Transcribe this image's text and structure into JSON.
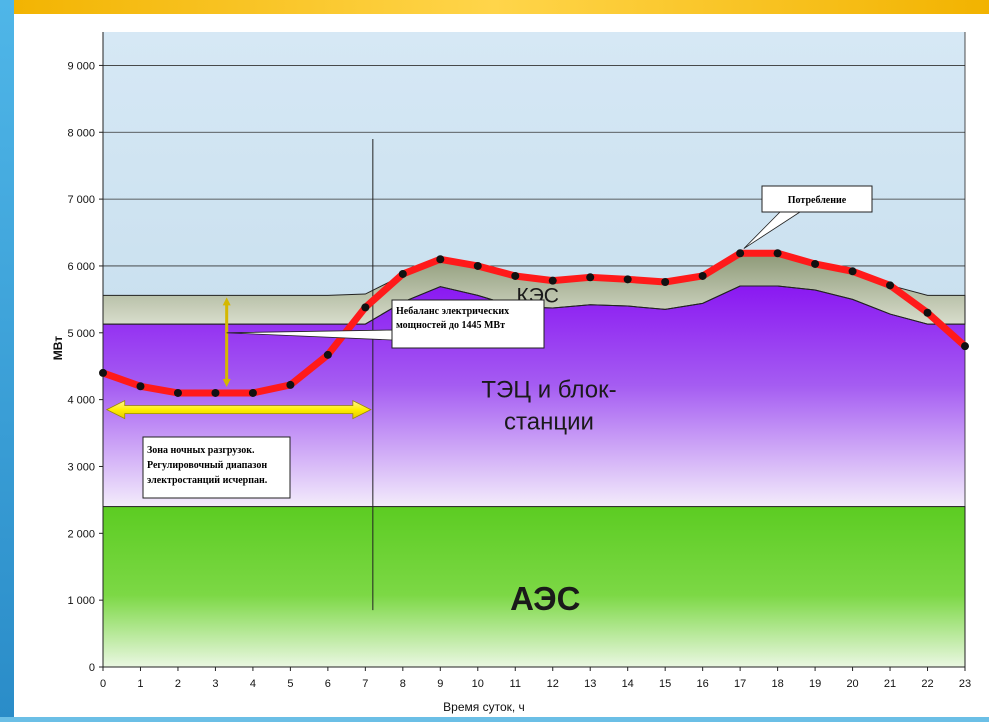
{
  "chart_data": {
    "type": "area",
    "xlabel": "Время суток, ч",
    "ylabel": "МВт",
    "ylim": [
      0,
      9500
    ],
    "xlim": [
      0,
      23
    ],
    "yticks": [
      0,
      1000,
      2000,
      3000,
      4000,
      5000,
      6000,
      7000,
      8000,
      9000
    ],
    "ytick_labels": [
      "0",
      "1 000",
      "2 000",
      "3 000",
      "4 000",
      "5 000",
      "6 000",
      "7 000",
      "8 000",
      "9 000"
    ],
    "x": [
      0,
      1,
      2,
      3,
      4,
      5,
      6,
      7,
      8,
      9,
      10,
      11,
      12,
      13,
      14,
      15,
      16,
      17,
      18,
      19,
      20,
      21,
      22,
      23
    ],
    "series": [
      {
        "name": "АЭС",
        "values": [
          2400,
          2400,
          2400,
          2400,
          2400,
          2400,
          2400,
          2400,
          2400,
          2400,
          2400,
          2400,
          2400,
          2400,
          2400,
          2400,
          2400,
          2400,
          2400,
          2400,
          2400,
          2400,
          2400,
          2400
        ]
      },
      {
        "name": "ТЭЦ и блок-станции",
        "values": [
          5130,
          5130,
          5130,
          5130,
          5130,
          5130,
          5130,
          5130,
          5460,
          5690,
          5560,
          5390,
          5370,
          5420,
          5400,
          5350,
          5440,
          5700,
          5700,
          5640,
          5500,
          5280,
          5130,
          5130
        ]
      },
      {
        "name": "КЭС",
        "values": [
          5560,
          5560,
          5560,
          5560,
          5560,
          5560,
          5560,
          5580,
          5860,
          6080,
          5990,
          5840,
          5780,
          5830,
          5800,
          5750,
          5840,
          6180,
          6180,
          6050,
          5910,
          5710,
          5560,
          5560
        ]
      },
      {
        "name": "Потребление",
        "values": [
          4400,
          4200,
          4100,
          4100,
          4100,
          4220,
          4670,
          5380,
          5880,
          6100,
          6000,
          5850,
          5780,
          5830,
          5800,
          5760,
          5850,
          6190,
          6190,
          6030,
          5920,
          5710,
          5300,
          4800
        ]
      }
    ],
    "night_zone_end_x": 7.2,
    "imbalance_value_x": 3.3,
    "grid": true,
    "colors": {
      "consumption": "#ff1a1a",
      "markers": "#111111",
      "aes": "#46c21c",
      "tec": "#8a1ef0",
      "kes": "#9eaa88",
      "sky": "#cfe3f2"
    },
    "annotations": {
      "consumption_callout": "Потребление",
      "imbalance_line1": "Небаланс электрических",
      "imbalance_line2": "мощностей до 1445 МВт",
      "zone_line1": "Зона ночных разгрузок.",
      "zone_line2": "Регулировочный диапазон",
      "zone_line3": "электростанций исчерпан."
    }
  }
}
